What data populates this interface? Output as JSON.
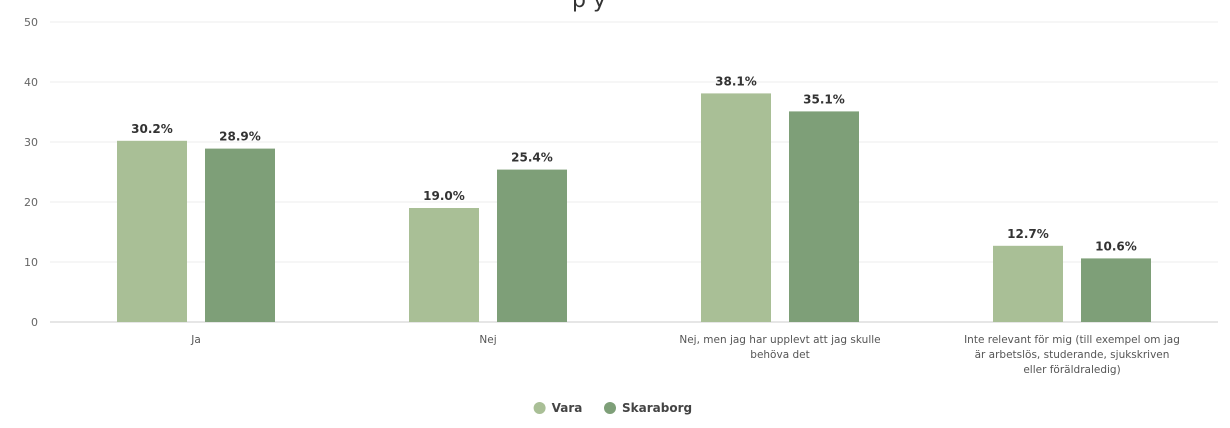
{
  "chart_data": {
    "type": "bar",
    "categories": [
      "Ja",
      "Nej",
      "Nej, men jag har upplevt att jag skulle behöva det",
      "Inte relevant för mig (till exempel om jag är arbetslös, studerande, sjukskriven eller föräldraledig)"
    ],
    "category_lines": [
      [
        "Ja"
      ],
      [
        "Nej"
      ],
      [
        "Nej, men jag har upplevt att jag skulle",
        "behöva det"
      ],
      [
        "Inte relevant för mig (till exempel om jag",
        "är arbetslös, studerande, sjukskriven",
        "eller föräldraledig)"
      ]
    ],
    "series": [
      {
        "name": "Vara",
        "values": [
          30.2,
          19.0,
          38.1,
          12.7
        ],
        "labels": [
          "30.2%",
          "19.0%",
          "38.1%",
          "12.7%"
        ],
        "color": "#a9bf96"
      },
      {
        "name": "Skaraborg",
        "values": [
          28.9,
          25.4,
          35.1,
          10.6
        ],
        "labels": [
          "28.9%",
          "25.4%",
          "35.1%",
          "10.6%"
        ],
        "color": "#7e9f78"
      }
    ],
    "title": "",
    "xlabel": "",
    "ylabel": "",
    "ylim": [
      0,
      50
    ],
    "yticks": [
      0,
      10,
      20,
      30,
      40,
      50
    ],
    "ytick_labels": [
      "0",
      "10",
      "20",
      "30",
      "40",
      "50"
    ],
    "grid": true,
    "legend_position": "bottom-center"
  },
  "title_fragment": "p y"
}
